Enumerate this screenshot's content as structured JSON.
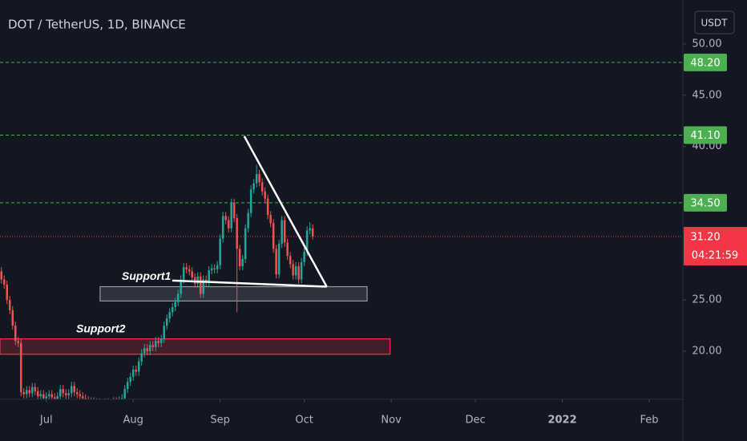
{
  "chart_data": {
    "type": "candlestick",
    "title": "DOT / TetherUS, 1D, BINANCE",
    "currency": "USDT",
    "up_color": "#26a69a",
    "down_color": "#ef5350",
    "open": [
      27.8,
      27.0,
      26.5,
      25.0,
      24.0,
      22.5,
      21.0,
      20.8,
      16.0,
      15.8,
      16.2,
      15.9,
      16.5,
      16.1,
      15.6,
      15.8,
      15.4,
      15.6,
      15.8,
      15.5,
      15.3,
      15.6,
      16.3,
      15.9,
      15.7,
      15.9,
      16.6,
      16.0,
      15.8,
      15.6,
      15.4,
      15.2,
      15.0,
      15.1,
      14.9,
      15.0,
      14.8,
      14.7,
      15.0,
      14.9,
      14.8,
      15.1,
      15.0,
      15.2,
      15.4,
      16.3,
      17.0,
      17.5,
      18.2,
      18.0,
      19.0,
      19.8,
      20.3,
      20.0,
      20.6,
      20.4,
      21.0,
      20.8,
      21.2,
      22.5,
      23.2,
      23.8,
      24.3,
      24.8,
      25.6,
      27.0,
      28.2,
      28.0,
      27.8,
      27.2,
      26.6,
      27.3,
      25.6,
      27.0,
      26.7,
      27.9,
      28.1,
      28.0,
      28.4,
      31.0,
      33.2,
      32.8,
      32.0,
      34.5,
      33.0,
      30.0,
      28.3,
      29.0,
      32.0,
      33.5,
      35.8,
      36.4,
      37.3,
      36.5,
      35.6,
      34.9,
      33.3,
      32.5,
      30.0,
      27.5,
      30.5,
      32.8,
      30.6,
      29.3,
      28.5,
      27.4,
      28.3,
      27.0,
      28.7,
      29.7,
      31.8,
      32.0
    ],
    "high": [
      28.2,
      27.4,
      26.9,
      25.4,
      24.4,
      22.9,
      21.4,
      21.2,
      16.4,
      16.6,
      16.6,
      16.9,
      16.9,
      16.5,
      16.2,
      16.2,
      16.0,
      16.2,
      16.2,
      15.9,
      16.0,
      16.7,
      16.7,
      16.3,
      16.3,
      17.0,
      17.0,
      16.4,
      16.2,
      16.0,
      15.8,
      15.6,
      15.5,
      15.5,
      15.4,
      15.4,
      15.2,
      15.4,
      15.4,
      15.3,
      15.5,
      15.5,
      15.6,
      15.8,
      16.7,
      17.4,
      17.9,
      18.6,
      18.6,
      19.4,
      20.2,
      20.7,
      20.7,
      21.0,
      21.0,
      21.4,
      21.4,
      21.6,
      22.9,
      23.6,
      24.2,
      24.7,
      25.2,
      26.0,
      27.4,
      28.6,
      28.6,
      28.4,
      28.2,
      27.6,
      27.7,
      27.7,
      27.4,
      27.4,
      28.3,
      28.5,
      28.5,
      28.8,
      31.4,
      33.6,
      33.6,
      33.2,
      34.9,
      34.9,
      33.4,
      30.4,
      29.4,
      32.4,
      33.9,
      36.2,
      36.8,
      38.2,
      37.7,
      36.9,
      36.0,
      35.3,
      33.7,
      32.9,
      30.4,
      30.9,
      33.2,
      33.2,
      31.0,
      29.7,
      28.9,
      28.7,
      28.7,
      29.1,
      30.1,
      32.2,
      32.6,
      32.4
    ],
    "low": [
      26.6,
      26.1,
      24.6,
      23.6,
      22.1,
      20.6,
      20.4,
      15.6,
      15.4,
      15.4,
      15.5,
      15.5,
      15.7,
      15.2,
      15.2,
      15.0,
      15.0,
      15.2,
      15.1,
      14.9,
      14.9,
      15.2,
      15.5,
      15.3,
      15.3,
      15.5,
      15.6,
      15.4,
      15.2,
      15.0,
      14.8,
      14.6,
      14.6,
      14.5,
      14.5,
      14.4,
      14.3,
      14.3,
      14.5,
      14.4,
      14.4,
      14.6,
      14.6,
      14.8,
      15.0,
      15.9,
      16.6,
      17.1,
      17.6,
      17.6,
      18.6,
      19.4,
      19.6,
      19.6,
      20.0,
      20.0,
      20.4,
      20.4,
      20.8,
      22.1,
      22.8,
      23.4,
      23.9,
      24.4,
      25.2,
      26.6,
      27.6,
      27.4,
      26.8,
      26.2,
      26.2,
      25.2,
      25.2,
      26.3,
      26.3,
      27.5,
      27.6,
      27.6,
      28.0,
      30.6,
      32.4,
      31.6,
      31.6,
      32.6,
      23.8,
      27.9,
      27.9,
      28.6,
      31.6,
      33.1,
      35.4,
      36.0,
      36.1,
      35.2,
      34.5,
      32.9,
      32.1,
      29.6,
      27.1,
      27.1,
      30.1,
      30.2,
      28.9,
      28.1,
      27.0,
      27.0,
      26.6,
      26.6,
      28.3,
      29.3,
      31.4,
      30.9
    ],
    "close": [
      27.0,
      26.5,
      25.0,
      24.0,
      22.5,
      21.0,
      20.8,
      16.0,
      15.8,
      16.2,
      15.9,
      16.5,
      16.1,
      15.6,
      15.8,
      15.4,
      15.6,
      15.8,
      15.5,
      15.3,
      15.6,
      16.3,
      15.9,
      15.7,
      15.9,
      16.6,
      16.0,
      15.8,
      15.6,
      15.4,
      15.2,
      15.0,
      15.1,
      14.9,
      15.0,
      14.8,
      14.7,
      15.0,
      14.9,
      14.8,
      15.1,
      15.0,
      15.2,
      15.4,
      16.3,
      17.0,
      17.5,
      18.2,
      18.0,
      19.0,
      19.8,
      20.3,
      20.0,
      20.6,
      20.4,
      21.0,
      20.8,
      21.2,
      22.5,
      23.2,
      23.8,
      24.3,
      24.8,
      25.6,
      27.0,
      28.2,
      28.0,
      27.8,
      27.2,
      26.6,
      27.3,
      25.6,
      27.0,
      26.7,
      27.9,
      28.1,
      28.0,
      28.4,
      31.0,
      33.2,
      32.8,
      32.0,
      34.5,
      33.0,
      30.0,
      28.3,
      29.0,
      32.0,
      33.5,
      35.8,
      36.4,
      37.3,
      36.5,
      35.6,
      34.9,
      33.3,
      32.5,
      30.0,
      27.5,
      30.5,
      32.8,
      30.6,
      29.3,
      28.5,
      27.4,
      28.3,
      27.0,
      28.7,
      29.7,
      31.8,
      32.0,
      31.2
    ],
    "xlim": [
      -0.5,
      243
    ],
    "xticks": [
      {
        "value": 16,
        "label": "Jul"
      },
      {
        "value": 47,
        "label": "Aug"
      },
      {
        "value": 78,
        "label": "Sep"
      },
      {
        "value": 108,
        "label": "Oct"
      },
      {
        "value": 139,
        "label": "Nov"
      },
      {
        "value": 169,
        "label": "Dec"
      },
      {
        "value": 200,
        "label": "2022"
      },
      {
        "value": 231,
        "label": "Feb"
      }
    ],
    "ylim": [
      15.3,
      54.3
    ],
    "yticks": [
      {
        "value": 20,
        "label": "20.00"
      },
      {
        "value": 25,
        "label": "25.00"
      },
      {
        "value": 40,
        "label": "40.00"
      },
      {
        "value": 45,
        "label": "45.00"
      },
      {
        "value": 50,
        "label": "50.00"
      }
    ],
    "levels": [
      {
        "value": 48.2,
        "label": "48.20",
        "color": "#4caf50"
      },
      {
        "value": 41.1,
        "label": "41.10",
        "color": "#4caf50"
      },
      {
        "value": 34.5,
        "label": "34.50",
        "color": "#4caf50"
      }
    ],
    "last_price": {
      "value": 31.2,
      "label": "31.20",
      "color": "#f23645"
    },
    "countdown": "04:21:59",
    "zones": [
      {
        "label": "Support1",
        "x": [
          35.2,
          130.4
        ],
        "y": [
          24.9,
          26.3
        ],
        "color": "#9598a1"
      },
      {
        "label": "Support2",
        "x": [
          -0.5,
          138.6
        ],
        "y": [
          19.7,
          21.2
        ],
        "color": "#f23645"
      }
    ],
    "trendlines": [
      {
        "x": [
          86.6,
          116
        ],
        "y": [
          41.0,
          26.3
        ]
      },
      {
        "x": [
          60.9,
          116
        ],
        "y": [
          26.9,
          26.3
        ]
      }
    ]
  }
}
